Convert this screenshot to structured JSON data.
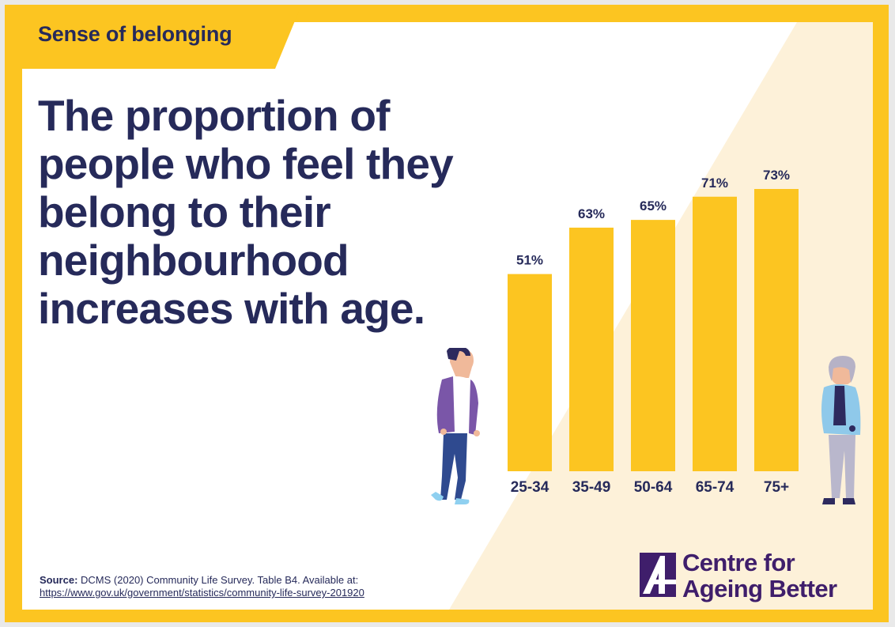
{
  "header": {
    "tag": "Sense of belonging"
  },
  "headline": "The proportion of people who feel they belong to their neighbourhood increases with age.",
  "chart_data": {
    "type": "bar",
    "title": "",
    "xlabel": "",
    "ylabel": "",
    "categories": [
      "25-34",
      "35-49",
      "50-64",
      "65-74",
      "75+"
    ],
    "values": [
      51,
      63,
      65,
      71,
      73
    ],
    "value_labels": [
      "51%",
      "63%",
      "65%",
      "71%",
      "73%"
    ],
    "unit": "%",
    "ylim": [
      0,
      100
    ],
    "grid": false,
    "legend": "none",
    "bar_color": "#fcc521",
    "label_color": "#262a5a"
  },
  "source": {
    "prefix": "Source:",
    "text": "DCMS (2020) Community Life Survey. Table B4. Available at:",
    "link": "https://www.gov.uk/government/statistics/community-life-survey-201920"
  },
  "logo": {
    "line1": "Centre for",
    "line2": "Ageing Better",
    "icon": "ageing-better-logo-mark"
  },
  "colors": {
    "accent": "#fcc521",
    "navy": "#262a5a",
    "purple": "#3f1e6b",
    "cream": "#fdf1d9"
  },
  "illustrations": {
    "left": "young-man-figure",
    "right": "older-woman-figure"
  }
}
